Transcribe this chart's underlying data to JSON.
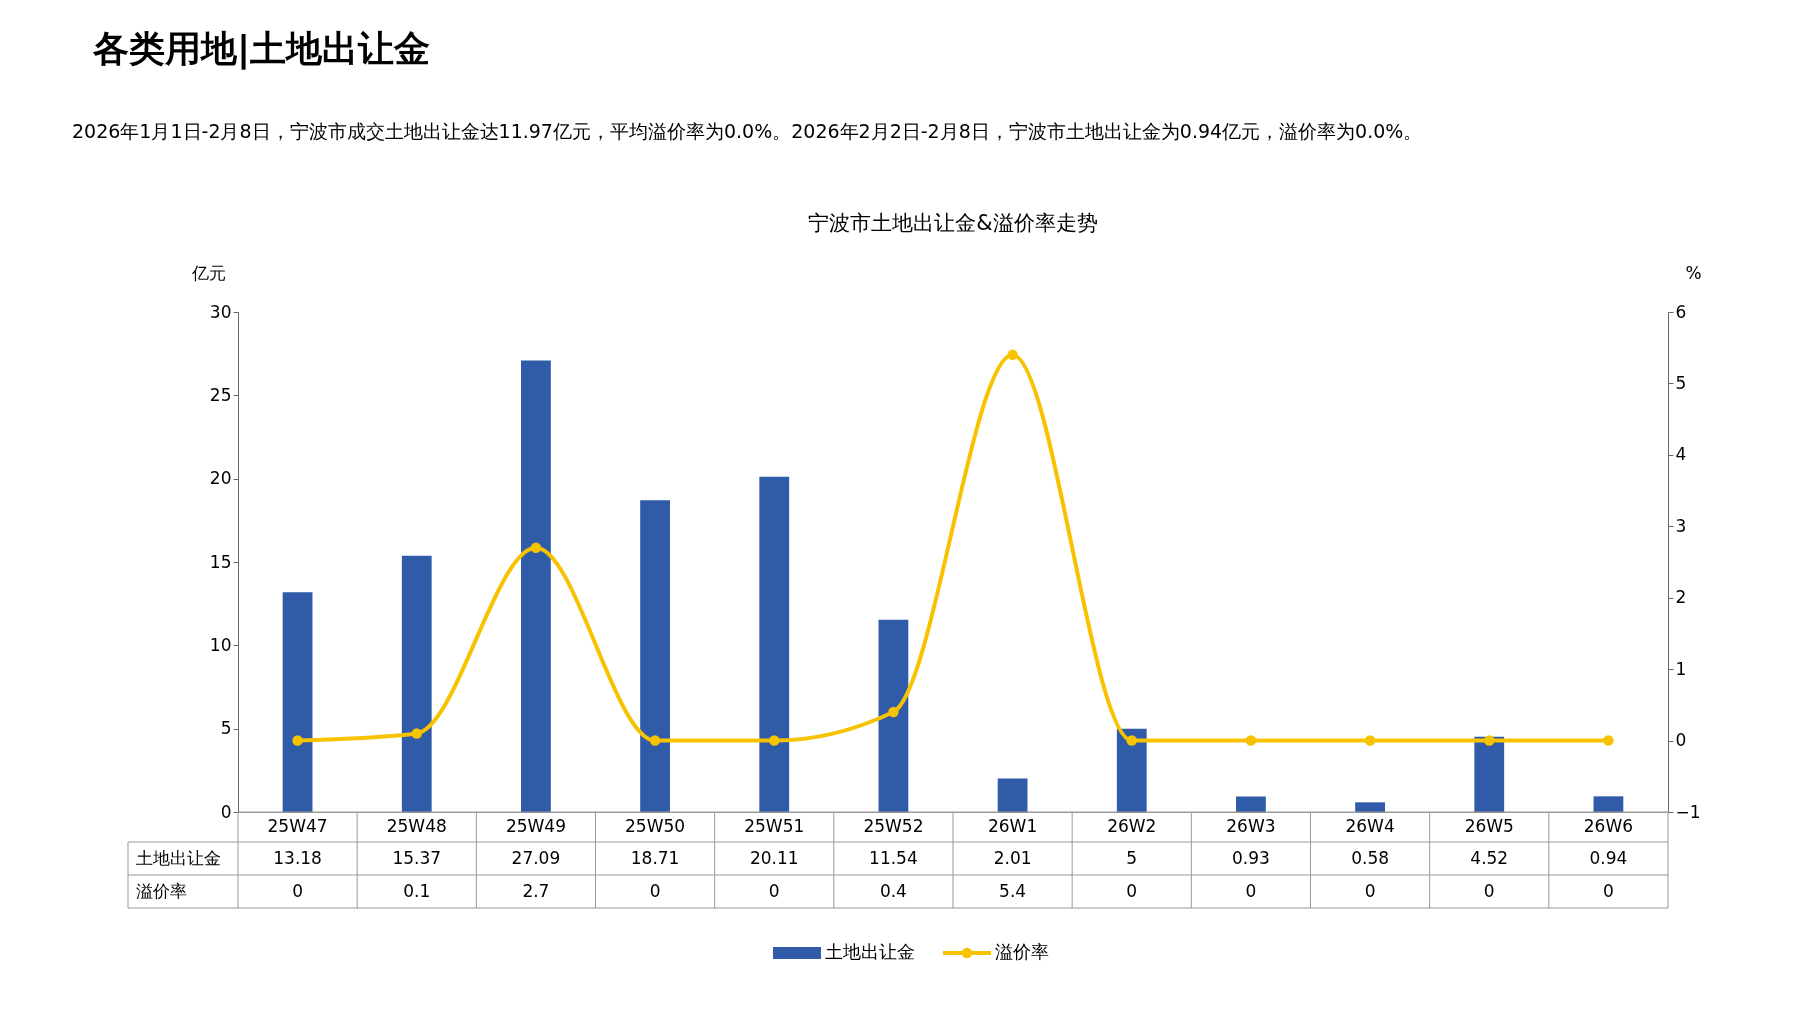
{
  "chart_data": {
    "type": "bar",
    "title": "宁波市土地出让金&溢价率走势",
    "subtitle": "2026年1月1日-2月8日，宁波市成交土地出让金达11.97亿元，平均溢价率为0.0%。2026年2月2日-2月8日，宁波市土地出让金为0.94亿元，溢价率为0.0%。",
    "annotations": [
      "各类用地|土地出让金"
    ],
    "ylabel": "亿元",
    "y2label": "%",
    "categories": [
      "25W47",
      "25W48",
      "25W49",
      "25W50",
      "25W51",
      "25W52",
      "26W1",
      "26W2",
      "26W3",
      "26W4",
      "26W5",
      "26W6"
    ],
    "series": [
      {
        "name": "土地出让金",
        "color": "#2f5ba8",
        "values": [
          13.18,
          15.37,
          27.09,
          18.71,
          20.11,
          11.54,
          2.01,
          5,
          0.93,
          0.58,
          4.52,
          0.94
        ]
      },
      {
        "name": "溢价率",
        "type": "line",
        "axis": "y2",
        "color": "#f7c300",
        "marker": "circle",
        "values": [
          0,
          0.1,
          2.7,
          0,
          0,
          0.4,
          5.4,
          0,
          0,
          0,
          0,
          0
        ]
      }
    ],
    "ylim": [
      0,
      30
    ],
    "yticks": [
      0,
      5,
      10,
      15,
      20,
      25,
      30
    ],
    "y2lim": [
      -1,
      6
    ],
    "y2ticks": [
      -1,
      0,
      1,
      2,
      3,
      4,
      5,
      6
    ],
    "data_labels": true,
    "grid": false,
    "legend": "bottom"
  }
}
